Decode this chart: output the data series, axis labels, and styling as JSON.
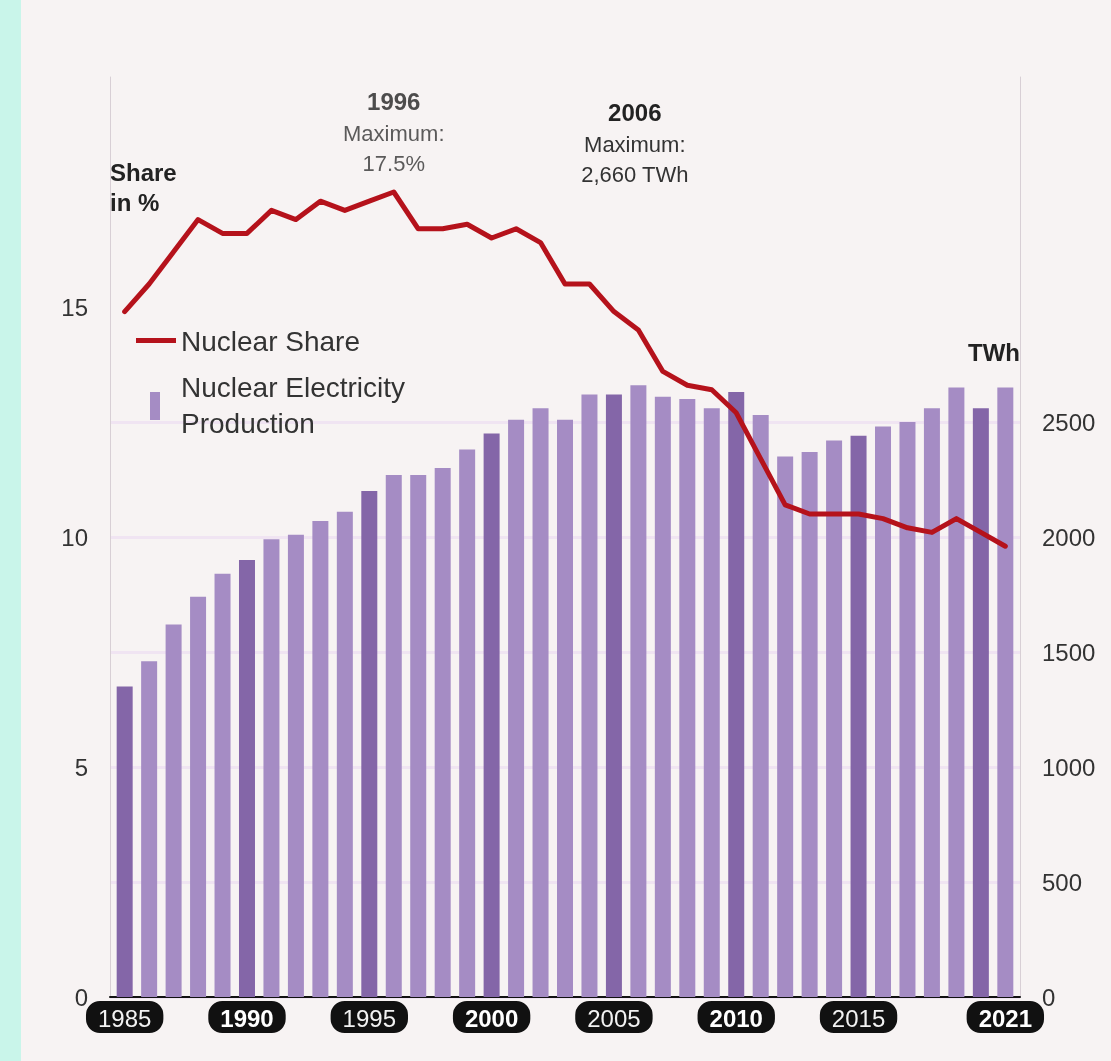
{
  "chart_data": {
    "type": "bar",
    "ylabel": "Share\nin %",
    "y2label": "TWh",
    "x": [
      1985,
      1986,
      1987,
      1988,
      1989,
      1990,
      1991,
      1992,
      1993,
      1994,
      1995,
      1996,
      1997,
      1998,
      1999,
      2000,
      2001,
      2002,
      2003,
      2004,
      2005,
      2006,
      2007,
      2008,
      2009,
      2010,
      2011,
      2012,
      2013,
      2014,
      2015,
      2016,
      2017,
      2018,
      2019,
      2020,
      2021
    ],
    "xlim": [
      1984.4,
      2021.6
    ],
    "xticks": [
      1985,
      1990,
      1995,
      2000,
      2005,
      2010,
      2015,
      2021
    ],
    "ylim": [
      0,
      20
    ],
    "yticks": [
      0,
      5,
      10,
      15
    ],
    "y2lim": [
      0,
      4000
    ],
    "y2ticks": [
      0,
      500,
      1000,
      1500,
      2000,
      2500
    ],
    "grid": "y2",
    "legend": "top left",
    "series": [
      {
        "name": "Nuclear Share",
        "type": "line",
        "color": "#b5121b",
        "values": [
          14.9,
          15.5,
          16.2,
          16.9,
          16.6,
          16.6,
          17.1,
          16.9,
          17.3,
          17.1,
          17.3,
          17.5,
          16.7,
          16.7,
          16.8,
          16.5,
          16.7,
          16.4,
          15.5,
          15.5,
          14.9,
          14.5,
          13.6,
          13.3,
          13.2,
          12.7,
          11.7,
          10.7,
          10.5,
          10.5,
          10.5,
          10.4,
          10.2,
          10.1,
          10.4,
          10.1,
          9.8
        ]
      },
      {
        "name": "Nuclear Electricity Production",
        "axis": "y2",
        "color": "#a58cc4",
        "colors": [
          "#8466a8",
          "#a58cc4",
          "#a58cc4",
          "#a58cc4",
          "#a58cc4",
          "#8466a8",
          "#a58cc4",
          "#a58cc4",
          "#a58cc4",
          "#a58cc4",
          "#8466a8",
          "#a58cc4",
          "#a58cc4",
          "#a58cc4",
          "#a58cc4",
          "#8466a8",
          "#a58cc4",
          "#a58cc4",
          "#a58cc4",
          "#a58cc4",
          "#8466a8",
          "#a58cc4",
          "#a58cc4",
          "#a58cc4",
          "#a58cc4",
          "#8466a8",
          "#a58cc4",
          "#a58cc4",
          "#a58cc4",
          "#a58cc4",
          "#8466a8",
          "#a58cc4",
          "#a58cc4",
          "#a58cc4",
          "#a58cc4",
          "#8466a8",
          "#a58cc4"
        ],
        "values": [
          1350,
          1460,
          1620,
          1740,
          1840,
          1900,
          1990,
          2010,
          2070,
          2110,
          2200,
          2270,
          2270,
          2300,
          2380,
          2450,
          2510,
          2560,
          2510,
          2620,
          2620,
          2660,
          2610,
          2600,
          2560,
          2630,
          2530,
          2350,
          2370,
          2420,
          2440,
          2480,
          2500,
          2560,
          2650,
          2560,
          2650
        ]
      }
    ],
    "annotations": [
      {
        "text": "1996\nMaximum:\n17.5%",
        "x": 1996,
        "y": 17.5
      },
      "2006\nMaximum:\n2,660 TWh"
    ]
  }
}
